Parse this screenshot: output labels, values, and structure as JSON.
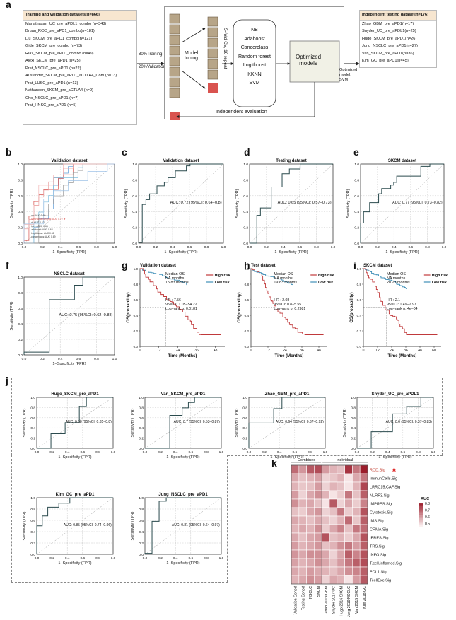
{
  "panels": {
    "a": "a",
    "b": "b",
    "c": "c",
    "d": "d",
    "e": "e",
    "f": "f",
    "g": "g",
    "h": "h",
    "i": "i",
    "j": "j",
    "k": "k"
  },
  "train": {
    "title": "Training and validation datasets(n=866)",
    "items": [
      "Mariathasan_UC_pre_aPDL1_combo (n=348)",
      "Bruan_RCC_pre_aPD1_combo(n=181)",
      "Liu_SKCM_pre_aPD1_combo(n=121)",
      "Gide_SKCM_pre_combo (n=73)",
      "Riaz_SKCM_pre_aPD1_combo (n=49)",
      "Alexi_SKCM_pre_aPD1 (n=25)",
      "Prat_NSCLC_pre_aPD1 (n=22)",
      "Auslander_SKCM_pre_aPD1_aCTLA4_Com (n=13)",
      "Prat_LUSC_pre_aPD1 (n=13)",
      "Nathanson_SKCM_pre_aCTLA4 (n=9)",
      "Cho_NSCLC_pre_aPD1 (n=7)",
      "Prat_HNSC_pre_aPD1 (n=5)"
    ]
  },
  "split": {
    "training": "80%Training",
    "validation": "20%Validation"
  },
  "flow": {
    "tuning": "Model\ntuning",
    "cv": "5-fold CV, 10 repeat",
    "methods": [
      "NB",
      "Adaboost",
      "Cancerclass",
      "Random forest",
      "Logitboost",
      "KKNN",
      "SVM"
    ],
    "optimized": "Optimized\nmodels",
    "independent": "Independent evaluation",
    "opt_svm": "Optimized\nmodel:\nSVM"
  },
  "test": {
    "title": "Independent testing dataset(n=176)",
    "items": [
      "Zhao_GBM_pre_aPD1(n=17)",
      "Snyder_UC_pre_aPDL1(n=25)",
      "Hugo_SKCM_pre_aPD1(n=26)",
      "Jung_NSCLC_pre_aPD1(n=27)",
      "Van_SKCM_pre_aPD1(n=36)",
      "Kim_GC_pre_aPD1(n=45)"
    ]
  },
  "axes": {
    "xlabel": "1−Specificity (FPR)",
    "ylabel": "Sensitivity (TPR)",
    "ticks": [
      "0.0",
      "0.2",
      "0.4",
      "0.6",
      "0.8",
      "1.0"
    ]
  },
  "roc": {
    "b": {
      "title": "Validation dataset",
      "legend": [
        "nb: AUC 0.69",
        "svmRadialWeights: AUC 0.72 ★",
        "rf: AUC 0.62",
        "kknn: AUC 0.66",
        "adaboost: AUC 0.62",
        "LogitBoost: AUC 0.58",
        "cancerclass: AUC 0.69"
      ]
    },
    "c": {
      "title": "Validation dataset",
      "auc": "AUC: 0.72 (95%CI: 0.64−0.8)"
    },
    "d": {
      "title": "Testing dataset",
      "auc": "AUC: 0.65 (95%CI: 0.57−0.73)"
    },
    "e": {
      "title": "SKCM dataset",
      "auc": "AUC: 0.77 (95%CI: 0.73−0.82)"
    },
    "f": {
      "title": "NSCLC dataset",
      "auc": "AUC: 0.75 (95%CI: 0.62−0.88)"
    },
    "j1": {
      "title": "Hugo_SKCM_pre_aPD1",
      "auc": "AUC: 0.58 (95%CI: 0.35−0.8)"
    },
    "j2": {
      "title": "Van_SKCM_pre_aPD1",
      "auc": "AUC: 0.7 (95%CI: 0.53−0.87)"
    },
    "j3": {
      "title": "Zhao_GBM_pre_aPD1",
      "auc": "AUC: 0.64 (95%CI: 0.37−0.92)"
    },
    "j4": {
      "title": "Snyder_UC_pre_aPDL1",
      "auc": "AUC: 0.6 (95%CI: 0.37−0.83)"
    },
    "j5": {
      "title": "Kim_GC_pre_aPD1",
      "auc": "AUC: 0.85 (95%CI: 0.74−0.96)"
    },
    "j6": {
      "title": "Jung_NSCLC_pre_aPD1",
      "auc": "AUC: 0.81 (95%CI: 0.64−0.97)"
    }
  },
  "km": {
    "ylabel": "OS(probability)",
    "xlabel": "Time (Months)",
    "high": "High risk",
    "low": "Low risk",
    "g": {
      "title": "Validation dataset",
      "median": "Median OS\nNA months\n15.83 months",
      "hr": "HR : 7.56\n95%CI: 1.05−54.22\nLog−rank p: 0.0181",
      "xt": [
        "0",
        "12",
        "24",
        "36",
        "48"
      ]
    },
    "h": {
      "title": "Test dataset",
      "median": "Median OS\nNA months\n19.83 months",
      "hr": "HR : 2.08\n95%CI: 0.8−5.55\nLog−rank p: 0.2981",
      "xt": [
        "0",
        "12",
        "24",
        "36",
        "48"
      ]
    },
    "i": {
      "title": "SKCM dataset",
      "median": "Median OS\nNA months\n20.23 months",
      "hr": "HR : 2.1\n95%CI: 1.49−2.97\nLog−rank p: 4e−04",
      "xt": [
        "0",
        "12",
        "24",
        "36",
        "48",
        "60"
      ]
    },
    "yt": [
      "0.0",
      "0.2",
      "0.4",
      "0.6",
      "0.8",
      "1.0"
    ]
  },
  "heatmap": {
    "group_combined": "Combined",
    "group_individual": "Individual",
    "rows": [
      "RCD.Sig",
      "ImmunCells.Sig",
      "LRRC15.CAF.Sig",
      "NLRP3.Sig",
      "IMPRES.Sig",
      "Cytotoxic.Sig",
      "IMS.Sig",
      "CRMA.Sig",
      "IPRES.Sig",
      "TRS.Sig",
      "INFG.Sig",
      "T.cell.inflamed.Sig",
      "PDL1.Sig",
      "TcellExc.Sig"
    ],
    "cols": [
      "Validation Cohort",
      "Testing Cohort",
      "NSCLC",
      "SKCM",
      "Zhao 2019 GBM",
      "Snyder 2017 UC",
      "Hugo 2016 SKCM",
      "Jung 2019 NSCLC",
      "Van 2015 SKCM",
      "Kim 2018 GC"
    ],
    "legend_title": "AUC",
    "legend_ticks": [
      "0.8",
      "0.7",
      "0.6",
      "0.5"
    ],
    "star": "★",
    "colors": {
      "low": "#fbf0f0",
      "high": "#9b1c2a"
    },
    "values": [
      [
        0.72,
        0.65,
        0.75,
        0.77,
        0.64,
        0.6,
        0.58,
        0.81,
        0.7,
        0.85
      ],
      [
        0.62,
        0.58,
        0.6,
        0.63,
        0.55,
        0.57,
        0.6,
        0.52,
        0.62,
        0.7
      ],
      [
        0.6,
        0.57,
        0.58,
        0.64,
        0.55,
        0.6,
        0.58,
        0.52,
        0.6,
        0.78
      ],
      [
        0.64,
        0.55,
        0.62,
        0.66,
        0.6,
        0.52,
        0.56,
        0.7,
        0.58,
        0.74
      ],
      [
        0.66,
        0.6,
        0.62,
        0.58,
        0.52,
        0.75,
        0.55,
        0.62,
        0.56,
        0.68
      ],
      [
        0.58,
        0.56,
        0.62,
        0.65,
        0.55,
        0.58,
        0.7,
        0.56,
        0.6,
        0.76
      ],
      [
        0.62,
        0.6,
        0.58,
        0.62,
        0.58,
        0.55,
        0.6,
        0.72,
        0.57,
        0.74
      ],
      [
        0.6,
        0.62,
        0.6,
        0.66,
        0.56,
        0.62,
        0.68,
        0.58,
        0.7,
        0.72
      ],
      [
        0.62,
        0.58,
        0.62,
        0.64,
        0.76,
        0.58,
        0.6,
        0.56,
        0.62,
        0.76
      ],
      [
        0.64,
        0.6,
        0.62,
        0.65,
        0.58,
        0.6,
        0.66,
        0.7,
        0.64,
        0.74
      ],
      [
        0.65,
        0.62,
        0.66,
        0.66,
        0.62,
        0.55,
        0.62,
        0.74,
        0.68,
        0.76
      ],
      [
        0.63,
        0.6,
        0.62,
        0.66,
        0.62,
        0.58,
        0.64,
        0.7,
        0.74,
        0.77
      ],
      [
        0.62,
        0.6,
        0.64,
        0.62,
        0.6,
        0.58,
        0.62,
        0.66,
        0.68,
        0.74
      ],
      [
        0.6,
        0.62,
        0.66,
        0.64,
        0.55,
        0.62,
        0.6,
        0.52,
        0.64,
        0.75
      ]
    ]
  }
}
